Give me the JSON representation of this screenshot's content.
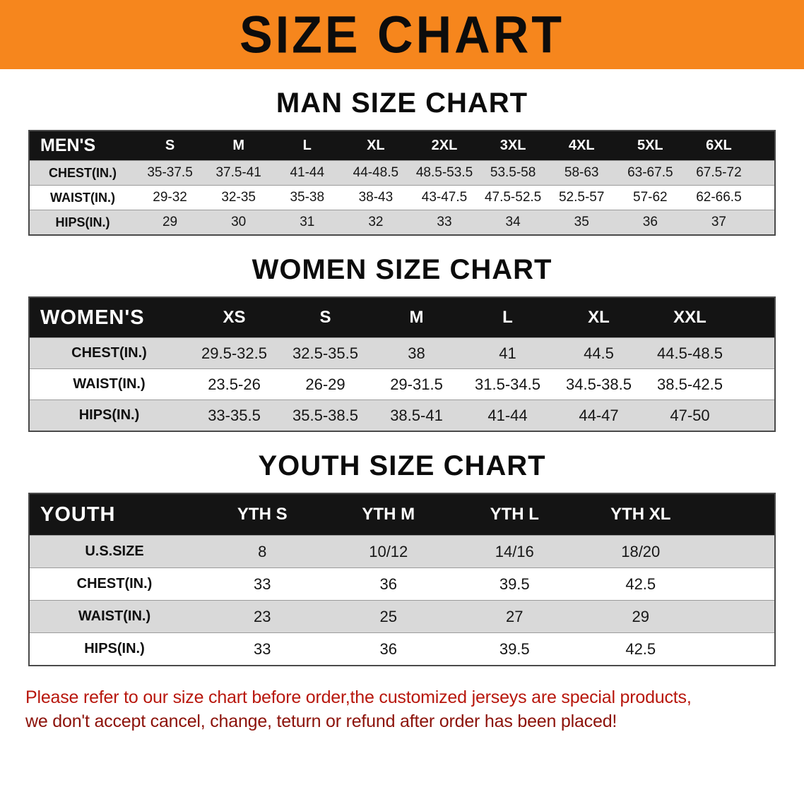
{
  "colors": {
    "banner_bg": "#f6861d",
    "table_header_bg": "#141414",
    "stripe_bg": "#d9d9d9",
    "footer_line1": "#b8170d",
    "footer_line2": "#8c120a"
  },
  "banner": {
    "title": "SIZE CHART"
  },
  "sections": [
    {
      "heading": "MAN SIZE CHART",
      "table": {
        "label": "MEN'S",
        "columns": [
          "S",
          "M",
          "L",
          "XL",
          "2XL",
          "3XL",
          "4XL",
          "5XL",
          "6XL"
        ],
        "rows": [
          {
            "label": "CHEST(IN.)",
            "values": [
              "35-37.5",
              "37.5-41",
              "41-44",
              "44-48.5",
              "48.5-53.5",
              "53.5-58",
              "58-63",
              "63-67.5",
              "67.5-72"
            ]
          },
          {
            "label": "WAIST(IN.)",
            "values": [
              "29-32",
              "32-35",
              "35-38",
              "38-43",
              "43-47.5",
              "47.5-52.5",
              "52.5-57",
              "57-62",
              "62-66.5"
            ]
          },
          {
            "label": "HIPS(IN.)",
            "values": [
              "29",
              "30",
              "31",
              "32",
              "33",
              "34",
              "35",
              "36",
              "37"
            ]
          }
        ]
      }
    },
    {
      "heading": "WOMEN SIZE CHART",
      "table": {
        "label": "WOMEN'S",
        "columns": [
          "XS",
          "S",
          "M",
          "L",
          "XL",
          "XXL"
        ],
        "rows": [
          {
            "label": "CHEST(IN.)",
            "values": [
              "29.5-32.5",
              "32.5-35.5",
              "38",
              "41",
              "44.5",
              "44.5-48.5"
            ]
          },
          {
            "label": "WAIST(IN.)",
            "values": [
              "23.5-26",
              "26-29",
              "29-31.5",
              "31.5-34.5",
              "34.5-38.5",
              "38.5-42.5"
            ]
          },
          {
            "label": "HIPS(IN.)",
            "values": [
              "33-35.5",
              "35.5-38.5",
              "38.5-41",
              "41-44",
              "44-47",
              "47-50"
            ]
          }
        ]
      }
    },
    {
      "heading": "YOUTH SIZE CHART",
      "table": {
        "label": "YOUTH",
        "columns": [
          "YTH S",
          "YTH M",
          "YTH L",
          "YTH XL"
        ],
        "rows": [
          {
            "label": "U.S.SIZE",
            "values": [
              "8",
              "10/12",
              "14/16",
              "18/20"
            ]
          },
          {
            "label": "CHEST(IN.)",
            "values": [
              "33",
              "36",
              "39.5",
              "42.5"
            ]
          },
          {
            "label": "WAIST(IN.)",
            "values": [
              "23",
              "25",
              "27",
              "29"
            ]
          },
          {
            "label": "HIPS(IN.)",
            "values": [
              "33",
              "36",
              "39.5",
              "42.5"
            ]
          }
        ]
      }
    }
  ],
  "footer": {
    "line1": "Please refer to our size chart before order,the customized jerseys are special products,",
    "line2": "we don't accept cancel, change, teturn or refund after order has been placed!"
  }
}
